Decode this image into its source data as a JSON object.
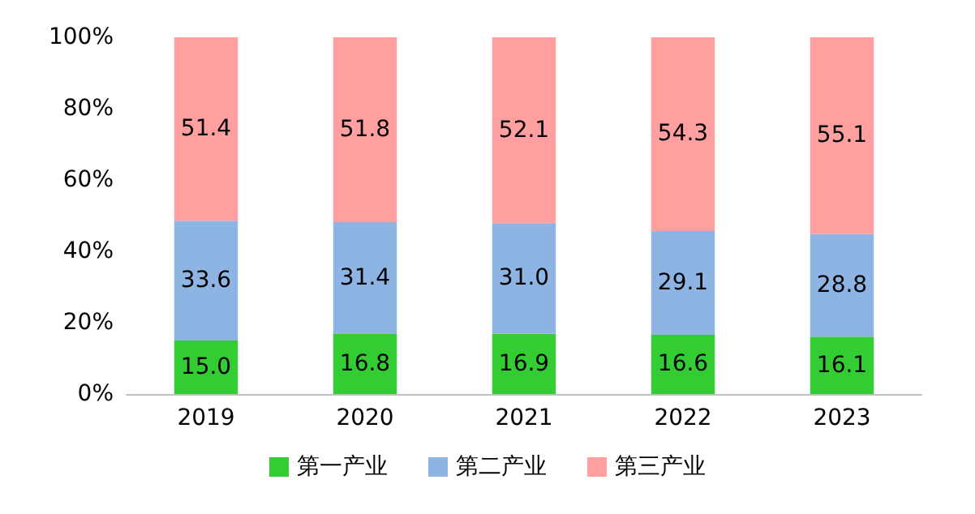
{
  "chart_data": {
    "type": "bar",
    "stacked": true,
    "categories": [
      "2019",
      "2020",
      "2021",
      "2022",
      "2023"
    ],
    "series": [
      {
        "name": "第一产业",
        "color": "#33cc33",
        "values": [
          15.0,
          16.8,
          16.9,
          16.6,
          16.1
        ],
        "value_labels": [
          "15.0",
          "16.8",
          "16.9",
          "16.6",
          "16.1"
        ]
      },
      {
        "name": "第二产业",
        "color": "#8eb4e3",
        "values": [
          33.6,
          31.4,
          31.0,
          29.1,
          28.8
        ],
        "value_labels": [
          "33.6",
          "31.4",
          "31.0",
          "29.1",
          "28.8"
        ]
      },
      {
        "name": "第三产业",
        "color": "#ff9f9f",
        "values": [
          51.4,
          51.8,
          52.1,
          54.3,
          55.1
        ],
        "value_labels": [
          "51.4",
          "51.8",
          "52.1",
          "54.3",
          "55.1"
        ]
      }
    ],
    "ylim": [
      0,
      100
    ],
    "yticks": [
      {
        "value": 0,
        "label": "0%"
      },
      {
        "value": 20,
        "label": "20%"
      },
      {
        "value": 40,
        "label": "40%"
      },
      {
        "value": 60,
        "label": "60%"
      },
      {
        "value": 80,
        "label": "80%"
      },
      {
        "value": 100,
        "label": "100%"
      }
    ],
    "grid": false,
    "legend": "bottom"
  }
}
